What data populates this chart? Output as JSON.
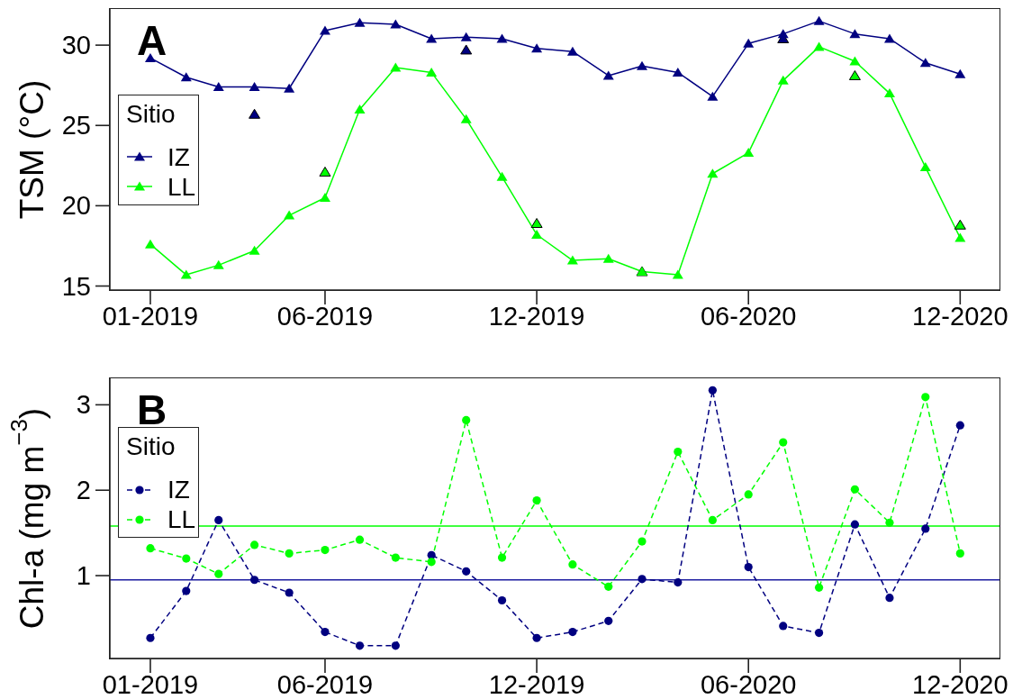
{
  "chart_data": [
    {
      "type": "line",
      "annotations": [
        "A"
      ],
      "ylabel": "TSM (°C)",
      "legend_title": "Sitio",
      "legend": "left",
      "marker": "triangle",
      "line_style": "solid",
      "x": [
        "2019-01",
        "2019-02",
        "2019-03",
        "2019-04",
        "2019-05",
        "2019-06",
        "2019-07",
        "2019-08",
        "2019-09",
        "2019-10",
        "2019-11",
        "2019-12",
        "2020-01",
        "2020-02",
        "2020-03",
        "2020-04",
        "2020-05",
        "2020-06",
        "2020-07",
        "2020-08",
        "2020-09",
        "2020-10",
        "2020-11",
        "2020-12"
      ],
      "series": [
        {
          "name": "IZ",
          "color": "#000080",
          "values": [
            29.2,
            28.0,
            27.4,
            27.4,
            27.3,
            30.9,
            31.4,
            31.3,
            30.4,
            30.5,
            30.4,
            29.8,
            29.6,
            28.1,
            28.7,
            28.3,
            26.8,
            30.1,
            30.7,
            31.5,
            30.7,
            30.4,
            28.9,
            28.2
          ]
        },
        {
          "name": "LL",
          "color": "#00ff00",
          "values": [
            17.6,
            15.7,
            16.3,
            17.2,
            19.4,
            20.5,
            26.0,
            28.6,
            28.3,
            25.4,
            21.8,
            18.2,
            16.6,
            16.7,
            15.9,
            15.7,
            22.0,
            23.3,
            27.8,
            29.9,
            29.0,
            27.0,
            22.4,
            18.0
          ]
        },
        {
          "type": "scatter",
          "color": "#000080",
          "x": [
            "2019-04",
            "2019-10",
            "2020-07"
          ],
          "values": [
            25.7,
            29.7,
            30.4
          ]
        },
        {
          "type": "scatter",
          "color": "#00ff00",
          "x": [
            "2019-06",
            "2019-12",
            "2020-03",
            "2020-09",
            "2020-12"
          ],
          "values": [
            22.1,
            18.9,
            15.9,
            28.1,
            18.8
          ]
        }
      ],
      "xlim": [
        "2018-11-27",
        "2021-01-04"
      ],
      "xticks": [
        {
          "value": "2019-01",
          "label": "01-2019"
        },
        {
          "value": "2019-06",
          "label": "06-2019"
        },
        {
          "value": "2019-12",
          "label": "12-2019"
        },
        {
          "value": "2020-06",
          "label": "06-2020"
        },
        {
          "value": "2020-12",
          "label": "12-2020"
        }
      ],
      "ylim": [
        14.75,
        32.25
      ],
      "yticks": [
        15,
        20,
        25,
        30
      ]
    },
    {
      "type": "line",
      "annotations": [
        "B"
      ],
      "ylabel": "Chl-a (mg m$^{−3}$)",
      "legend_title": "Sitio",
      "legend": "top left",
      "marker": "circle",
      "line_style": "dashed",
      "x": [
        "2019-01",
        "2019-02",
        "2019-03",
        "2019-04",
        "2019-05",
        "2019-06",
        "2019-07",
        "2019-08",
        "2019-09",
        "2019-10",
        "2019-11",
        "2019-12",
        "2020-01",
        "2020-02",
        "2020-03",
        "2020-04",
        "2020-05",
        "2020-06",
        "2020-07",
        "2020-08",
        "2020-09",
        "2020-10",
        "2020-11",
        "2020-12"
      ],
      "series": [
        {
          "name": "IZ",
          "color": "#000080",
          "values": [
            0.27,
            0.82,
            1.65,
            0.95,
            0.8,
            0.34,
            0.18,
            0.18,
            1.24,
            1.05,
            0.71,
            0.27,
            0.34,
            0.47,
            0.96,
            0.92,
            3.17,
            1.1,
            0.41,
            0.33,
            1.6,
            0.74,
            1.55,
            2.76
          ]
        },
        {
          "name": "LL",
          "color": "#00ff00",
          "values": [
            1.32,
            1.2,
            1.02,
            1.36,
            1.26,
            1.3,
            1.42,
            1.21,
            1.16,
            2.82,
            1.21,
            1.88,
            1.13,
            0.87,
            1.4,
            2.45,
            1.65,
            1.95,
            2.56,
            0.86,
            2.01,
            1.62,
            3.09,
            1.26
          ]
        }
      ],
      "ref_lines": [
        {
          "axis": "y",
          "value": 1.58,
          "color": "#00ff00"
        },
        {
          "axis": "y",
          "value": 0.95,
          "color": "#1c1ca0"
        }
      ],
      "xlim": [
        "2018-11-27",
        "2021-01-04"
      ],
      "xticks": [
        {
          "value": "2019-01",
          "label": "01-2019"
        },
        {
          "value": "2019-06",
          "label": "06-2019"
        },
        {
          "value": "2019-12",
          "label": "12-2019"
        },
        {
          "value": "2020-06",
          "label": "06-2020"
        },
        {
          "value": "2020-12",
          "label": "12-2020"
        }
      ],
      "ylim": [
        0.03,
        3.31
      ],
      "yticks": [
        1,
        2,
        3
      ]
    }
  ]
}
